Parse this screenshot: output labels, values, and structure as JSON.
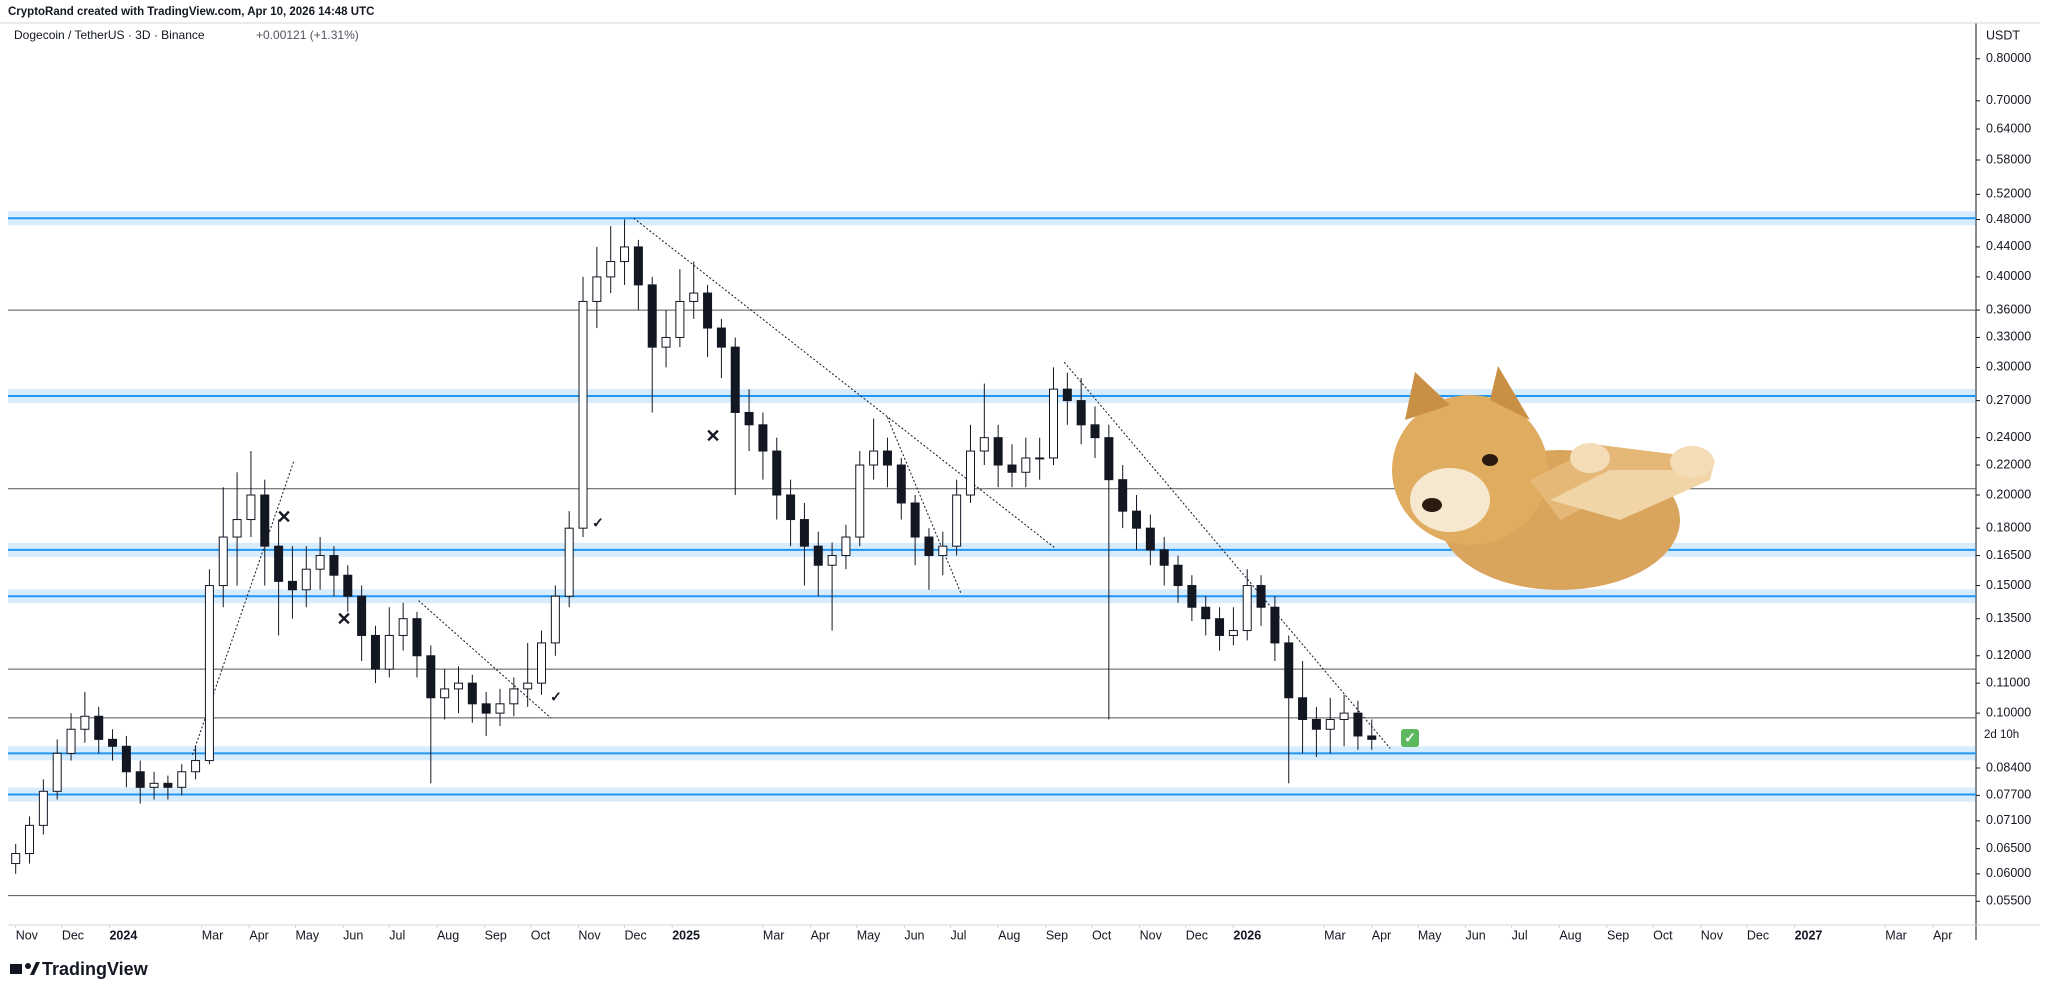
{
  "header": {
    "attribution": "CryptoRand created with TradingView.com, Apr 10, 2026 14:48 UTC"
  },
  "footer": {
    "logo": "TradingView"
  },
  "chart_data": {
    "type": "candlestick",
    "title": "Dogecoin / TetherUS · 3D · Binance",
    "change": "+0.00121 (+1.31%)",
    "y_unit": "USDT",
    "countdown": "2d 10h",
    "log_scale": true,
    "grid": false,
    "up_color": "#ffffff",
    "down_color": "#131722",
    "outline_color": "#131722",
    "xlim": [
      -5,
      1275
    ],
    "xticks": [
      {
        "value": 0,
        "label": "Nov"
      },
      {
        "value": 30,
        "label": "Dec"
      },
      {
        "value": 61,
        "label": "2024"
      },
      {
        "value": 121,
        "label": "Mar"
      },
      {
        "value": 152,
        "label": "Apr"
      },
      {
        "value": 182,
        "label": "May"
      },
      {
        "value": 213,
        "label": "Jun"
      },
      {
        "value": 243,
        "label": "Jul"
      },
      {
        "value": 274,
        "label": "Aug"
      },
      {
        "value": 305,
        "label": "Sep"
      },
      {
        "value": 335,
        "label": "Oct"
      },
      {
        "value": 366,
        "label": "Nov"
      },
      {
        "value": 396,
        "label": "Dec"
      },
      {
        "value": 427,
        "label": "2025"
      },
      {
        "value": 486,
        "label": "Mar"
      },
      {
        "value": 517,
        "label": "Apr"
      },
      {
        "value": 547,
        "label": "May"
      },
      {
        "value": 578,
        "label": "Jun"
      },
      {
        "value": 608,
        "label": "Jul"
      },
      {
        "value": 639,
        "label": "Aug"
      },
      {
        "value": 670,
        "label": "Sep"
      },
      {
        "value": 700,
        "label": "Oct"
      },
      {
        "value": 731,
        "label": "Nov"
      },
      {
        "value": 761,
        "label": "Dec"
      },
      {
        "value": 792,
        "label": "2026"
      },
      {
        "value": 851,
        "label": "Mar"
      },
      {
        "value": 882,
        "label": "Apr"
      },
      {
        "value": 912,
        "label": "May"
      },
      {
        "value": 943,
        "label": "Jun"
      },
      {
        "value": 973,
        "label": "Jul"
      },
      {
        "value": 1004,
        "label": "Aug"
      },
      {
        "value": 1035,
        "label": "Sep"
      },
      {
        "value": 1065,
        "label": "Oct"
      },
      {
        "value": 1096,
        "label": "Nov"
      },
      {
        "value": 1126,
        "label": "Dec"
      },
      {
        "value": 1157,
        "label": "2027"
      },
      {
        "value": 1216,
        "label": "Mar"
      },
      {
        "value": 1247,
        "label": "Apr"
      }
    ],
    "ylim": [
      0.051,
      0.895
    ],
    "yticks": [
      {
        "value": 0.8,
        "label": "0.80000"
      },
      {
        "value": 0.7,
        "label": "0.70000"
      },
      {
        "value": 0.64,
        "label": "0.64000"
      },
      {
        "value": 0.58,
        "label": "0.58000"
      },
      {
        "value": 0.52,
        "label": "0.52000"
      },
      {
        "value": 0.48,
        "label": "0.48000"
      },
      {
        "value": 0.44,
        "label": "0.44000"
      },
      {
        "value": 0.4,
        "label": "0.40000"
      },
      {
        "value": 0.36,
        "label": "0.36000"
      },
      {
        "value": 0.33,
        "label": "0.33000"
      },
      {
        "value": 0.3,
        "label": "0.30000"
      },
      {
        "value": 0.27,
        "label": "0.27000"
      },
      {
        "value": 0.24,
        "label": "0.24000"
      },
      {
        "value": 0.22,
        "label": "0.22000"
      },
      {
        "value": 0.2,
        "label": "0.20000"
      },
      {
        "value": 0.18,
        "label": "0.18000"
      },
      {
        "value": 0.165,
        "label": "0.16500"
      },
      {
        "value": 0.15,
        "label": "0.15000"
      },
      {
        "value": 0.135,
        "label": "0.13500"
      },
      {
        "value": 0.12,
        "label": "0.12000"
      },
      {
        "value": 0.11,
        "label": "0.11000"
      },
      {
        "value": 0.1,
        "label": "0.10000"
      },
      {
        "value": 0.084,
        "label": "0.08400"
      },
      {
        "value": 0.077,
        "label": "0.07700"
      },
      {
        "value": 0.071,
        "label": "0.07100"
      },
      {
        "value": 0.065,
        "label": "0.06500"
      },
      {
        "value": 0.06,
        "label": "0.06000"
      },
      {
        "value": 0.055,
        "label": "0.05500"
      }
    ],
    "x": [
      0,
      9,
      18,
      27,
      36,
      45,
      54,
      63,
      72,
      81,
      90,
      99,
      108,
      117,
      126,
      135,
      144,
      153,
      162,
      171,
      180,
      189,
      198,
      207,
      216,
      225,
      234,
      243,
      252,
      261,
      270,
      279,
      288,
      297,
      306,
      315,
      324,
      333,
      342,
      351,
      360,
      369,
      378,
      387,
      396,
      405,
      414,
      423,
      432,
      441,
      450,
      459,
      468,
      477,
      486,
      495,
      504,
      513,
      522,
      531,
      540,
      549,
      558,
      567,
      576,
      585,
      594,
      603,
      612,
      621,
      630,
      639,
      648,
      657,
      666,
      675,
      684,
      693,
      702,
      711,
      720,
      729,
      738,
      747,
      756,
      765,
      774,
      783,
      792,
      801,
      810,
      819,
      828,
      837,
      846,
      855,
      864,
      873,
      882
    ],
    "open": [
      0.062,
      0.064,
      0.07,
      0.078,
      0.088,
      0.095,
      0.099,
      0.092,
      0.09,
      0.083,
      0.079,
      0.08,
      0.079,
      0.083,
      0.086,
      0.15,
      0.175,
      0.185,
      0.2,
      0.17,
      0.152,
      0.148,
      0.158,
      0.165,
      0.155,
      0.145,
      0.128,
      0.115,
      0.128,
      0.135,
      0.12,
      0.105,
      0.108,
      0.11,
      0.103,
      0.1,
      0.103,
      0.108,
      0.11,
      0.125,
      0.145,
      0.18,
      0.37,
      0.4,
      0.42,
      0.44,
      0.39,
      0.32,
      0.33,
      0.37,
      0.38,
      0.34,
      0.32,
      0.26,
      0.25,
      0.23,
      0.2,
      0.185,
      0.17,
      0.16,
      0.165,
      0.175,
      0.22,
      0.23,
      0.22,
      0.195,
      0.175,
      0.165,
      0.17,
      0.2,
      0.23,
      0.24,
      0.22,
      0.215,
      0.225,
      0.225,
      0.28,
      0.27,
      0.25,
      0.24,
      0.21,
      0.19,
      0.18,
      0.168,
      0.16,
      0.15,
      0.14,
      0.135,
      0.128,
      0.13,
      0.15,
      0.14,
      0.125,
      0.105,
      0.098,
      0.095,
      0.098,
      0.1,
      0.093
    ],
    "high": [
      0.066,
      0.072,
      0.081,
      0.092,
      0.1,
      0.107,
      0.102,
      0.095,
      0.093,
      0.086,
      0.083,
      0.082,
      0.085,
      0.09,
      0.158,
      0.205,
      0.215,
      0.23,
      0.21,
      0.185,
      0.17,
      0.17,
      0.175,
      0.17,
      0.16,
      0.15,
      0.132,
      0.14,
      0.142,
      0.138,
      0.124,
      0.115,
      0.116,
      0.113,
      0.107,
      0.108,
      0.112,
      0.125,
      0.13,
      0.15,
      0.19,
      0.4,
      0.44,
      0.47,
      0.48,
      0.45,
      0.4,
      0.36,
      0.41,
      0.42,
      0.39,
      0.35,
      0.33,
      0.28,
      0.26,
      0.24,
      0.21,
      0.195,
      0.178,
      0.172,
      0.182,
      0.23,
      0.255,
      0.24,
      0.225,
      0.2,
      0.18,
      0.178,
      0.21,
      0.25,
      0.285,
      0.25,
      0.235,
      0.24,
      0.24,
      0.3,
      0.295,
      0.29,
      0.265,
      0.25,
      0.22,
      0.2,
      0.188,
      0.175,
      0.165,
      0.155,
      0.145,
      0.14,
      0.14,
      0.158,
      0.155,
      0.145,
      0.128,
      0.118,
      0.102,
      0.105,
      0.106,
      0.104,
      0.098
    ],
    "low": [
      0.06,
      0.062,
      0.068,
      0.076,
      0.086,
      0.091,
      0.088,
      0.086,
      0.079,
      0.075,
      0.076,
      0.076,
      0.077,
      0.081,
      0.085,
      0.14,
      0.15,
      0.175,
      0.15,
      0.128,
      0.135,
      0.14,
      0.148,
      0.145,
      0.138,
      0.118,
      0.11,
      0.112,
      0.122,
      0.112,
      0.08,
      0.098,
      0.1,
      0.097,
      0.093,
      0.096,
      0.099,
      0.102,
      0.106,
      0.12,
      0.14,
      0.175,
      0.34,
      0.38,
      0.39,
      0.36,
      0.26,
      0.3,
      0.32,
      0.35,
      0.31,
      0.29,
      0.2,
      0.23,
      0.21,
      0.185,
      0.17,
      0.15,
      0.145,
      0.13,
      0.158,
      0.17,
      0.21,
      0.205,
      0.185,
      0.16,
      0.148,
      0.155,
      0.165,
      0.195,
      0.22,
      0.205,
      0.205,
      0.205,
      0.21,
      0.22,
      0.25,
      0.235,
      0.225,
      0.098,
      0.18,
      0.168,
      0.16,
      0.15,
      0.142,
      0.134,
      0.128,
      0.122,
      0.124,
      0.126,
      0.132,
      0.118,
      0.08,
      0.088,
      0.087,
      0.088,
      0.09,
      0.089,
      0.089
    ],
    "close": [
      0.064,
      0.07,
      0.078,
      0.088,
      0.095,
      0.099,
      0.092,
      0.09,
      0.083,
      0.079,
      0.08,
      0.079,
      0.083,
      0.086,
      0.15,
      0.175,
      0.185,
      0.2,
      0.17,
      0.152,
      0.148,
      0.158,
      0.165,
      0.155,
      0.145,
      0.128,
      0.115,
      0.128,
      0.135,
      0.12,
      0.105,
      0.108,
      0.11,
      0.103,
      0.1,
      0.103,
      0.108,
      0.11,
      0.125,
      0.145,
      0.18,
      0.37,
      0.4,
      0.42,
      0.44,
      0.39,
      0.32,
      0.33,
      0.37,
      0.38,
      0.34,
      0.32,
      0.26,
      0.25,
      0.23,
      0.2,
      0.185,
      0.17,
      0.16,
      0.165,
      0.175,
      0.22,
      0.23,
      0.22,
      0.195,
      0.175,
      0.165,
      0.17,
      0.2,
      0.23,
      0.24,
      0.22,
      0.215,
      0.225,
      0.225,
      0.28,
      0.27,
      0.25,
      0.24,
      0.21,
      0.19,
      0.18,
      0.168,
      0.16,
      0.15,
      0.14,
      0.135,
      0.128,
      0.13,
      0.15,
      0.14,
      0.125,
      0.105,
      0.098,
      0.095,
      0.098,
      0.1,
      0.093,
      0.092
    ],
    "zones": [
      0.482,
      0.274,
      0.168,
      0.145,
      0.088,
      0.0772
    ],
    "zone_color": "#2196f3",
    "levels": [
      0.36,
      0.204,
      0.115,
      0.0985,
      0.056
    ],
    "level_color": "#555555",
    "trendlines": [
      {
        "x": [
          402,
          676
        ],
        "y": [
          0.482,
          0.169
        ]
      },
      {
        "x": [
          682,
          894
        ],
        "y": [
          0.305,
          0.0894
        ]
      },
      {
        "x": [
          115,
          181
        ],
        "y": [
          0.0876,
          0.223
        ]
      },
      {
        "x": [
          567,
          615
        ],
        "y": [
          0.256,
          0.146
        ]
      },
      {
        "x": [
          262,
          348
        ],
        "y": [
          0.143,
          0.0985
        ]
      }
    ]
  }
}
